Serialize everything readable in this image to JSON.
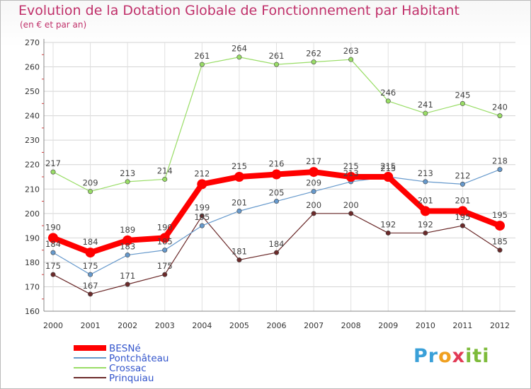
{
  "header": {
    "title": "Evolution de la Dotation Globale de Fonctionnement par Habitant",
    "subtitle": "(en € et par an)"
  },
  "logo": {
    "text": "Proxiti"
  },
  "chart_data": {
    "type": "line",
    "title": "Evolution de la Dotation Globale de Fonctionnement par Habitant",
    "subtitle": "(en € et par an)",
    "x": [
      "2000",
      "2001",
      "2002",
      "2003",
      "2004",
      "2005",
      "2006",
      "2007",
      "2008",
      "2009",
      "2010",
      "2011",
      "2012"
    ],
    "ylim": [
      160,
      270
    ],
    "yticks": [
      160,
      170,
      180,
      190,
      200,
      210,
      220,
      230,
      240,
      250,
      260,
      270
    ],
    "grid": true,
    "legend_position": "bottom-left",
    "series": [
      {
        "name": "BESNé",
        "color": "#ff0000",
        "values": [
          190,
          184,
          189,
          190,
          212,
          215,
          216,
          217,
          215,
          215,
          201,
          201,
          195
        ]
      },
      {
        "name": "Pontchâteau",
        "color": "#6699cc",
        "values": [
          184,
          175,
          183,
          185,
          195,
          201,
          205,
          209,
          213,
          215,
          213,
          212,
          218
        ]
      },
      {
        "name": "Crossac",
        "color": "#99dd66",
        "values": [
          217,
          209,
          213,
          214,
          261,
          264,
          261,
          262,
          263,
          246,
          241,
          245,
          240
        ]
      },
      {
        "name": "Prinquiau",
        "color": "#6b2a2a",
        "values": [
          175,
          167,
          171,
          175,
          199,
          181,
          184,
          200,
          200,
          192,
          192,
          195,
          185
        ]
      }
    ]
  }
}
